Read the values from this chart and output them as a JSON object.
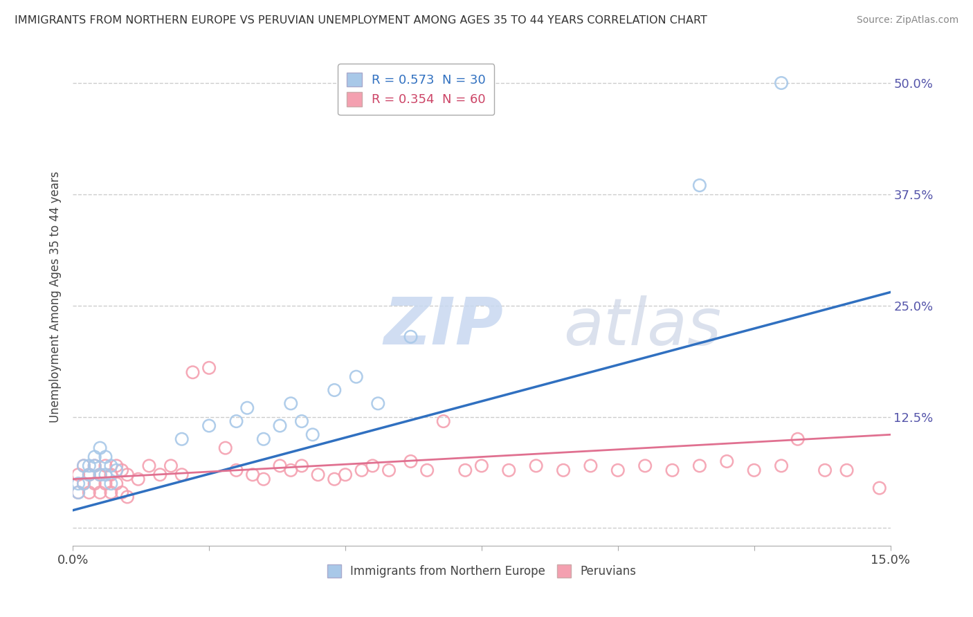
{
  "title": "IMMIGRANTS FROM NORTHERN EUROPE VS PERUVIAN UNEMPLOYMENT AMONG AGES 35 TO 44 YEARS CORRELATION CHART",
  "source": "Source: ZipAtlas.com",
  "ylabel": "Unemployment Among Ages 35 to 44 years",
  "xlim": [
    0.0,
    0.15
  ],
  "ylim": [
    -0.02,
    0.54
  ],
  "xticks": [
    0.0,
    0.025,
    0.05,
    0.075,
    0.1,
    0.125,
    0.15
  ],
  "xticklabels": [
    "0.0%",
    "",
    "",
    "",
    "",
    "",
    "15.0%"
  ],
  "yticks": [
    0.0,
    0.125,
    0.25,
    0.375,
    0.5
  ],
  "yticklabels": [
    "",
    "12.5%",
    "25.0%",
    "37.5%",
    "50.0%"
  ],
  "blue_R": 0.573,
  "blue_N": 30,
  "pink_R": 0.354,
  "pink_N": 60,
  "blue_color": "#a8c8e8",
  "pink_color": "#f4a0b0",
  "blue_line_color": "#3070c0",
  "pink_line_color": "#e07090",
  "watermark_zip": "ZIP",
  "watermark_atlas": "atlas",
  "blue_x": [
    0.001,
    0.001,
    0.002,
    0.002,
    0.003,
    0.003,
    0.004,
    0.004,
    0.005,
    0.005,
    0.006,
    0.006,
    0.007,
    0.007,
    0.008,
    0.02,
    0.025,
    0.03,
    0.032,
    0.035,
    0.038,
    0.04,
    0.042,
    0.044,
    0.048,
    0.052,
    0.056,
    0.062,
    0.115,
    0.13
  ],
  "blue_y": [
    0.04,
    0.05,
    0.05,
    0.07,
    0.06,
    0.07,
    0.07,
    0.08,
    0.06,
    0.09,
    0.06,
    0.08,
    0.05,
    0.07,
    0.065,
    0.1,
    0.115,
    0.12,
    0.135,
    0.1,
    0.115,
    0.14,
    0.12,
    0.105,
    0.155,
    0.17,
    0.14,
    0.215,
    0.385,
    0.5
  ],
  "pink_x": [
    0.001,
    0.001,
    0.002,
    0.002,
    0.003,
    0.003,
    0.004,
    0.004,
    0.005,
    0.005,
    0.006,
    0.006,
    0.007,
    0.007,
    0.008,
    0.008,
    0.009,
    0.009,
    0.01,
    0.01,
    0.012,
    0.014,
    0.016,
    0.018,
    0.02,
    0.022,
    0.025,
    0.028,
    0.03,
    0.033,
    0.035,
    0.038,
    0.04,
    0.042,
    0.045,
    0.048,
    0.05,
    0.053,
    0.055,
    0.058,
    0.062,
    0.065,
    0.068,
    0.072,
    0.075,
    0.08,
    0.085,
    0.09,
    0.095,
    0.1,
    0.105,
    0.11,
    0.115,
    0.12,
    0.125,
    0.13,
    0.133,
    0.138,
    0.142,
    0.148
  ],
  "pink_y": [
    0.04,
    0.06,
    0.05,
    0.07,
    0.04,
    0.06,
    0.05,
    0.07,
    0.04,
    0.06,
    0.05,
    0.07,
    0.04,
    0.06,
    0.05,
    0.07,
    0.04,
    0.065,
    0.035,
    0.06,
    0.055,
    0.07,
    0.06,
    0.07,
    0.06,
    0.175,
    0.18,
    0.09,
    0.065,
    0.06,
    0.055,
    0.07,
    0.065,
    0.07,
    0.06,
    0.055,
    0.06,
    0.065,
    0.07,
    0.065,
    0.075,
    0.065,
    0.12,
    0.065,
    0.07,
    0.065,
    0.07,
    0.065,
    0.07,
    0.065,
    0.07,
    0.065,
    0.07,
    0.075,
    0.065,
    0.07,
    0.1,
    0.065,
    0.065,
    0.045
  ]
}
